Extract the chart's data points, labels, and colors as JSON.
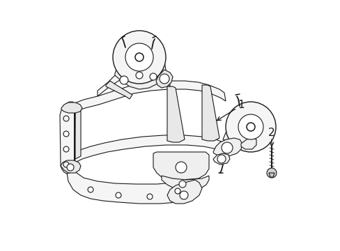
{
  "background_color": "#ffffff",
  "line_color": "#1a1a1a",
  "line_width": 0.8,
  "label_1": "1",
  "label_2": "2",
  "figsize": [
    4.89,
    3.6
  ],
  "dpi": 100,
  "xlim": [
    0,
    489
  ],
  "ylim": [
    0,
    360
  ]
}
